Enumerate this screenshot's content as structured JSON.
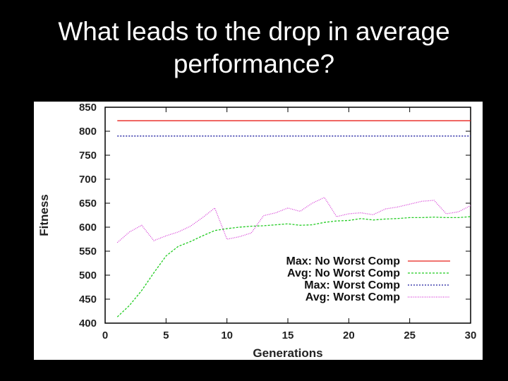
{
  "slide": {
    "title": "What leads to the drop in average performance?"
  },
  "chart_data": {
    "type": "line",
    "xlabel": "Generations",
    "ylabel": "Fitness",
    "xlim": [
      0,
      30
    ],
    "ylim": [
      400,
      850
    ],
    "xticks": [
      0,
      5,
      10,
      15,
      20,
      25,
      30
    ],
    "yticks": [
      400,
      450,
      500,
      550,
      600,
      650,
      700,
      750,
      800,
      850
    ],
    "grid": false,
    "legend_position": "lower-right",
    "series": [
      {
        "name": "Max: No Worst Comp",
        "color": "#e8211b",
        "dash": "solid",
        "x": [
          1,
          30
        ],
        "y": [
          822,
          822
        ]
      },
      {
        "name": "Avg: No Worst Comp",
        "color": "#22cc22",
        "dash": "dashed",
        "x": [
          1,
          2,
          3,
          4,
          5,
          6,
          7,
          8,
          9,
          10,
          11,
          12,
          13,
          14,
          15,
          16,
          17,
          18,
          19,
          20,
          21,
          22,
          23,
          24,
          25,
          26,
          27,
          28,
          29,
          30
        ],
        "y": [
          413,
          437,
          468,
          505,
          540,
          560,
          570,
          582,
          593,
          597,
          600,
          602,
          603,
          605,
          607,
          604,
          605,
          610,
          613,
          614,
          618,
          615,
          617,
          618,
          620,
          620,
          621,
          620,
          620,
          622
        ]
      },
      {
        "name": "Max: Worst Comp",
        "color": "#1a1a9e",
        "dash": "dotted",
        "x": [
          1,
          30
        ],
        "y": [
          790,
          790
        ]
      },
      {
        "name": "Avg: Worst Comp",
        "color": "#d63ad6",
        "dash": "fine-dotted",
        "x": [
          1,
          2,
          3,
          4,
          5,
          6,
          7,
          8,
          9,
          10,
          11,
          12,
          13,
          14,
          15,
          16,
          17,
          18,
          19,
          20,
          21,
          22,
          23,
          24,
          25,
          26,
          27,
          28,
          29,
          30
        ],
        "y": [
          568,
          590,
          604,
          572,
          582,
          590,
          602,
          620,
          640,
          575,
          580,
          588,
          624,
          630,
          640,
          633,
          650,
          662,
          622,
          628,
          630,
          626,
          638,
          642,
          648,
          654,
          656,
          628,
          632,
          645
        ]
      }
    ]
  }
}
